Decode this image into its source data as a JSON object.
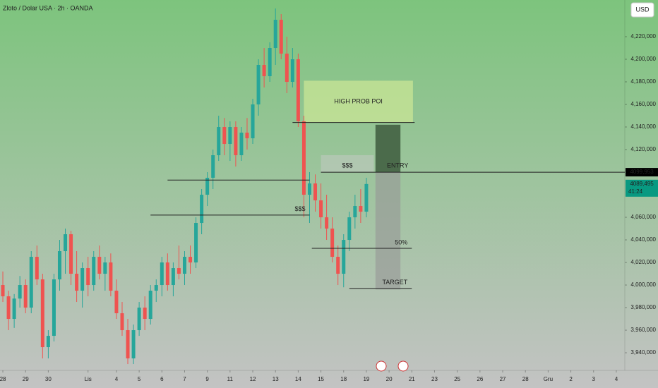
{
  "chart_data": {
    "type": "candlestick",
    "title": "Zloto / Dolar USA · 2h · OANDA",
    "currency_button": "USD",
    "up_color": "#26a69a",
    "down_color": "#ef5350",
    "candles": [
      [
        4000,
        4012,
        3985,
        3990
      ],
      [
        3990,
        3995,
        3960,
        3970
      ],
      [
        3970,
        3992,
        3962,
        3988
      ],
      [
        3988,
        4008,
        3980,
        4000
      ],
      [
        4000,
        4005,
        3975,
        3980
      ],
      [
        3980,
        4030,
        3975,
        4025
      ],
      [
        4025,
        4035,
        4000,
        4005
      ],
      [
        4005,
        4010,
        3935,
        3945
      ],
      [
        3945,
        3960,
        3935,
        3955
      ],
      [
        3955,
        4010,
        3950,
        4005
      ],
      [
        4005,
        4040,
        3995,
        4030
      ],
      [
        4030,
        4050,
        4010,
        4045
      ],
      [
        4045,
        4048,
        4000,
        4010
      ],
      [
        4010,
        4030,
        3985,
        3995
      ],
      [
        3995,
        4020,
        3980,
        4015
      ],
      [
        4015,
        4025,
        3990,
        4000
      ],
      [
        4000,
        4030,
        3995,
        4025
      ],
      [
        4025,
        4035,
        4005,
        4010
      ],
      [
        4010,
        4025,
        3995,
        4020
      ],
      [
        4020,
        4028,
        3990,
        3995
      ],
      [
        3995,
        4005,
        3970,
        3975
      ],
      [
        3975,
        3985,
        3955,
        3960
      ],
      [
        3960,
        3970,
        3930,
        3935
      ],
      [
        3935,
        3965,
        3930,
        3960
      ],
      [
        3960,
        3985,
        3955,
        3980
      ],
      [
        3980,
        3990,
        3960,
        3970
      ],
      [
        3970,
        4000,
        3965,
        3995
      ],
      [
        3995,
        4005,
        3985,
        4000
      ],
      [
        4000,
        4025,
        3990,
        4020
      ],
      [
        4020,
        4028,
        3995,
        4000
      ],
      [
        4000,
        4020,
        3990,
        4015
      ],
      [
        4015,
        4035,
        4005,
        4010
      ],
      [
        4010,
        4030,
        4000,
        4025
      ],
      [
        4025,
        4035,
        4010,
        4020
      ],
      [
        4020,
        4060,
        4015,
        4055
      ],
      [
        4055,
        4085,
        4045,
        4080
      ],
      [
        4080,
        4100,
        4070,
        4095
      ],
      [
        4095,
        4120,
        4085,
        4115
      ],
      [
        4115,
        4150,
        4110,
        4140
      ],
      [
        4140,
        4148,
        4115,
        4125
      ],
      [
        4125,
        4145,
        4110,
        4140
      ],
      [
        4140,
        4145,
        4105,
        4115
      ],
      [
        4115,
        4140,
        4110,
        4135
      ],
      [
        4135,
        4148,
        4120,
        4130
      ],
      [
        4130,
        4165,
        4125,
        4160
      ],
      [
        4160,
        4200,
        4150,
        4195
      ],
      [
        4195,
        4210,
        4175,
        4185
      ],
      [
        4185,
        4215,
        4180,
        4210
      ],
      [
        4210,
        4245,
        4195,
        4235
      ],
      [
        4235,
        4240,
        4200,
        4205
      ],
      [
        4205,
        4220,
        4170,
        4180
      ],
      [
        4180,
        4210,
        4175,
        4200
      ],
      [
        4200,
        4205,
        4140,
        4145
      ],
      [
        4145,
        4150,
        4060,
        4080
      ],
      [
        4080,
        4100,
        4055,
        4090
      ],
      [
        4090,
        4098,
        4065,
        4075
      ],
      [
        4075,
        4090,
        4050,
        4060
      ],
      [
        4060,
        4080,
        4040,
        4050
      ],
      [
        4050,
        4060,
        4020,
        4025
      ],
      [
        4025,
        4035,
        4000,
        4010
      ],
      [
        4010,
        4045,
        3998,
        4040
      ],
      [
        4040,
        4065,
        4030,
        4060
      ],
      [
        4060,
        4080,
        4050,
        4070
      ],
      [
        4070,
        4085,
        4055,
        4065
      ],
      [
        4065,
        4095,
        4060,
        4089.495
      ]
    ],
    "xlim": [
      -0.5,
      109.5
    ],
    "ylim": [
      3924.4,
      4252.5
    ],
    "xticks": [
      {
        "value": 0,
        "label": "28"
      },
      {
        "value": 4,
        "label": "29"
      },
      {
        "value": 8,
        "label": "30"
      },
      {
        "value": 15,
        "label": "Lis"
      },
      {
        "value": 20,
        "label": "4"
      },
      {
        "value": 24,
        "label": "5"
      },
      {
        "value": 28,
        "label": "6"
      },
      {
        "value": 32,
        "label": "7"
      },
      {
        "value": 36,
        "label": "9"
      },
      {
        "value": 40,
        "label": "11"
      },
      {
        "value": 44,
        "label": "12"
      },
      {
        "value": 48,
        "label": "13"
      },
      {
        "value": 52,
        "label": "14"
      },
      {
        "value": 56,
        "label": "15"
      },
      {
        "value": 60,
        "label": "18"
      },
      {
        "value": 64,
        "label": "19"
      },
      {
        "value": 68,
        "label": "20"
      },
      {
        "value": 72,
        "label": "21"
      },
      {
        "value": 76,
        "label": "23"
      },
      {
        "value": 80,
        "label": "25"
      },
      {
        "value": 84,
        "label": "26"
      },
      {
        "value": 88,
        "label": "27"
      },
      {
        "value": 92,
        "label": "28"
      },
      {
        "value": 96,
        "label": "Gru"
      },
      {
        "value": 100,
        "label": "2"
      },
      {
        "value": 104,
        "label": "3"
      },
      {
        "value": 108,
        "label": "4"
      }
    ],
    "yticks": [
      {
        "value": 3940,
        "label": "3,940,000"
      },
      {
        "value": 3960,
        "label": "3,960,000"
      },
      {
        "value": 3980,
        "label": "3,980,000"
      },
      {
        "value": 4000,
        "label": "4,000,000"
      },
      {
        "value": 4020,
        "label": "4,020,000"
      },
      {
        "value": 4040,
        "label": "4,040,000"
      },
      {
        "value": 4060,
        "label": "4,060,000"
      },
      {
        "value": 4120,
        "label": "4,120,000"
      },
      {
        "value": 4140,
        "label": "4,140,000"
      },
      {
        "value": 4160,
        "label": "4,160,000"
      },
      {
        "value": 4180,
        "label": "4,180,000"
      },
      {
        "value": 4200,
        "label": "4,200,000"
      },
      {
        "value": 4220,
        "label": "4,220,000"
      }
    ],
    "zones": [
      {
        "x": [
          53,
          72.2
        ],
        "y": [
          4144,
          4181
        ],
        "label": "HIGH PROB POI",
        "color": "rgba(210,235,150,0.65)"
      },
      {
        "x": [
          56,
          65.3
        ],
        "y": [
          4100,
          4115
        ],
        "label": "$$$",
        "color": "rgba(205,205,205,0.45)"
      },
      {
        "x": [
          65.6,
          70
        ],
        "y": [
          4100,
          4142
        ],
        "label": "ENTRY",
        "color": "#4b6b4b"
      },
      {
        "x": [
          65.6,
          70
        ],
        "y": [
          3996,
          4100
        ],
        "color": "rgba(150,150,150,0.6)"
      }
    ],
    "levels": [
      {
        "x": [
          29,
          54
        ],
        "y": 4093
      },
      {
        "x": [
          26,
          54
        ],
        "y": 4062,
        "label": "$$$"
      },
      {
        "x": [
          51,
          72.5
        ],
        "y": 4144
      },
      {
        "x": [
          54.4,
          72
        ],
        "y": 4032.5,
        "label": "50%"
      },
      {
        "x": [
          61,
          72
        ],
        "y": 3997,
        "label": "TARGET"
      },
      {
        "x": [
          56,
          109.5
        ],
        "y": 4099.953
      }
    ],
    "price_tags": [
      {
        "value": 4099.953,
        "label": "4099,953",
        "color": "#000000"
      },
      {
        "value": 4089.495,
        "label": "4089,495",
        "countdown": "41:24",
        "color": "#089981"
      }
    ]
  }
}
